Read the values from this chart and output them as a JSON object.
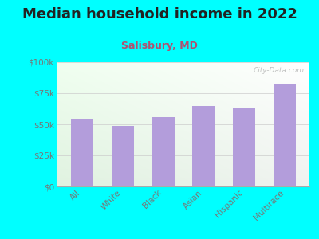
{
  "title": "Median household income in 2022",
  "subtitle": "Salisbury, MD",
  "categories": [
    "All",
    "White",
    "Black",
    "Asian",
    "Hispanic",
    "Multirace"
  ],
  "values": [
    54000,
    49000,
    56000,
    65000,
    63000,
    82000
  ],
  "bar_color": "#b39ddb",
  "background_color": "#00FFFF",
  "plot_bg_color_topleft": "#e8f5e9",
  "plot_bg_color_topright": "#f5f5f5",
  "plot_bg_color_bottomleft": "#dff2e0",
  "plot_bg_color_bottomright": "#f0f0f0",
  "ylabel_ticks": [
    0,
    25000,
    50000,
    75000,
    100000
  ],
  "ylabel_labels": [
    "$0",
    "$25k",
    "$50k",
    "$75k",
    "$100k"
  ],
  "ylim": [
    0,
    100000
  ],
  "title_fontsize": 13,
  "subtitle_fontsize": 9,
  "tick_label_fontsize": 7.5,
  "watermark": "City-Data.com",
  "title_color": "#222222",
  "subtitle_color": "#b05070",
  "tick_color": "#777777",
  "grid_color": "#cccccc",
  "spine_color": "#aaaaaa"
}
